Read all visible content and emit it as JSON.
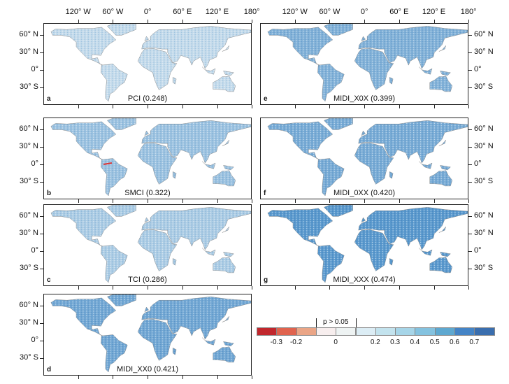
{
  "lon_ticks": [
    "120° W",
    "60° W",
    "0°",
    "60° E",
    "120° E",
    "180°"
  ],
  "lat_ticks": [
    "60° N",
    "30° N",
    "0°",
    "30° S"
  ],
  "panels": [
    {
      "letter": "a",
      "title": "PCI (0.248)",
      "intensity": 0.25,
      "col": 0,
      "row": 0
    },
    {
      "letter": "b",
      "title": "SMCI (0.322)",
      "intensity": 0.5,
      "col": 0,
      "row": 1
    },
    {
      "letter": "c",
      "title": "TCI (0.286)",
      "intensity": 0.4,
      "col": 0,
      "row": 2
    },
    {
      "letter": "d",
      "title": "MIDI_XX0 (0.421)",
      "intensity": 0.75,
      "col": 0,
      "row": 3
    },
    {
      "letter": "e",
      "title": "MIDI_X0X (0.399)",
      "intensity": 0.65,
      "col": 1,
      "row": 0
    },
    {
      "letter": "f",
      "title": "MIDI_0XX (0.420)",
      "intensity": 0.72,
      "col": 1,
      "row": 1
    },
    {
      "letter": "g",
      "title": "MIDI_XXX (0.474)",
      "intensity": 0.9,
      "col": 1,
      "row": 2
    }
  ],
  "colorbar": {
    "colors": [
      "#c1272d",
      "#e0634e",
      "#eaa586",
      "#f7eeee",
      "#eef3f3",
      "#dcedf5",
      "#c3e3ee",
      "#a6d5e8",
      "#84c2df",
      "#5ea8d0",
      "#4484c6",
      "#3a6eae"
    ],
    "labels": [
      "-0.3",
      "-0.2",
      "0",
      "0.2",
      "0.3",
      "0.4",
      "0.5",
      "0.6",
      "0.7"
    ],
    "label_positions": [
      1,
      2,
      4,
      6,
      7,
      8,
      9,
      10,
      11
    ],
    "nonsig_label": "p > 0.05"
  }
}
